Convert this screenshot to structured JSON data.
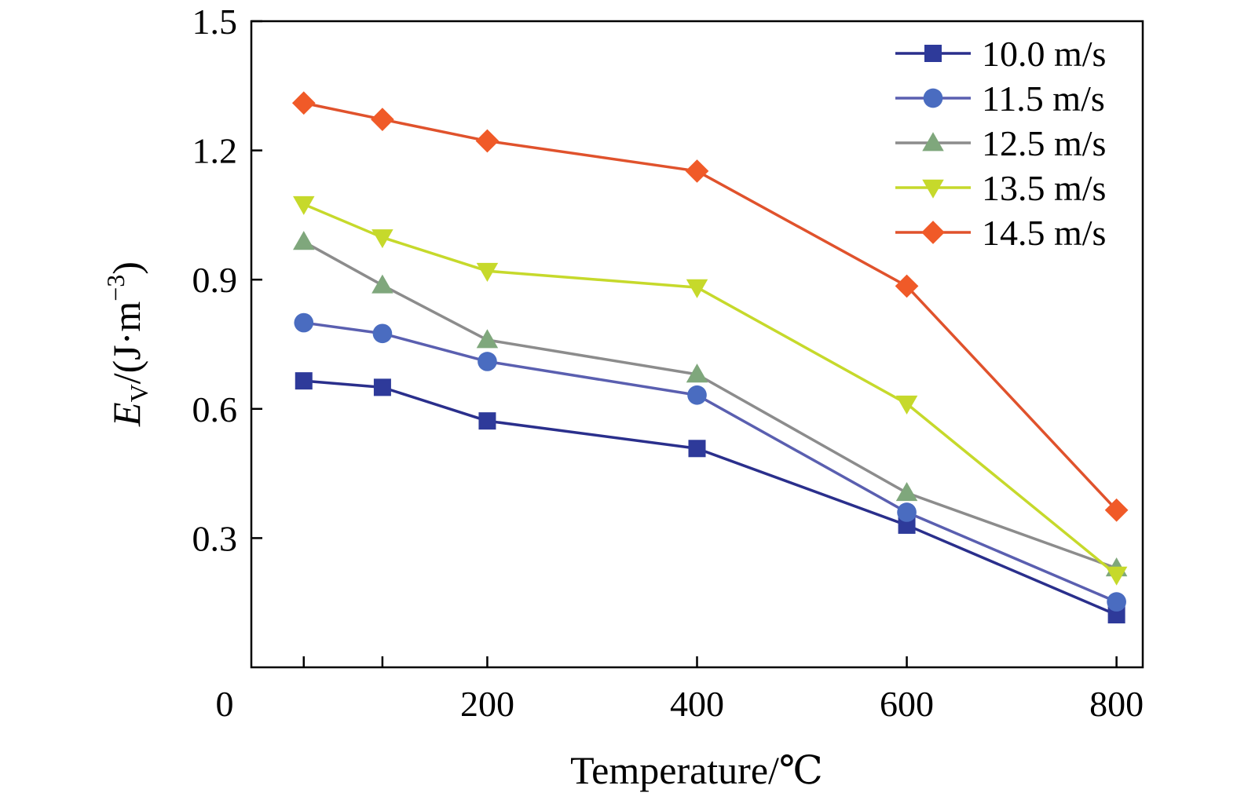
{
  "chart_data": {
    "type": "line",
    "xlabel": "Temperature/℃",
    "ylabel": {
      "symbol": "E",
      "subscript": "V",
      "unit_prefix": "/(J·m",
      "superscript": "−3",
      "unit_suffix": ")"
    },
    "xlim": [
      -25,
      825
    ],
    "ylim": [
      0.0,
      1.5
    ],
    "xticks": [
      {
        "value": 200,
        "label": "200"
      },
      {
        "value": 400,
        "label": "400"
      },
      {
        "value": 600,
        "label": "600"
      },
      {
        "value": 800,
        "label": "800"
      }
    ],
    "x_origin_label": "0",
    "yticks": [
      {
        "value": 0.3,
        "label": "0.3"
      },
      {
        "value": 0.6,
        "label": "0.6"
      },
      {
        "value": 0.9,
        "label": "0.9"
      },
      {
        "value": 1.2,
        "label": "1.2"
      },
      {
        "value": 1.5,
        "label": "1.5"
      }
    ],
    "x": [
      25,
      100,
      200,
      400,
      600,
      800
    ],
    "grid": false,
    "legend_position": "top-right",
    "series": [
      {
        "name": "10.0 m/s",
        "marker": "square",
        "color": "#2e3a9a",
        "values": [
          0.665,
          0.65,
          0.572,
          0.508,
          0.33,
          0.122
        ]
      },
      {
        "name": "11.5 m/s",
        "marker": "circle",
        "color": "#4a6cc0",
        "values": [
          0.8,
          0.775,
          0.71,
          0.632,
          0.36,
          0.152
        ]
      },
      {
        "name": "12.5 m/s",
        "marker": "triangle-up",
        "color": "#7fa77c",
        "values": [
          0.988,
          0.887,
          0.76,
          0.68,
          0.405,
          0.23
        ]
      },
      {
        "name": "13.5 m/s",
        "marker": "triangle-down",
        "color": "#c6d92b",
        "values": [
          1.075,
          0.998,
          0.92,
          0.882,
          0.612,
          0.215
        ]
      },
      {
        "name": "14.5 m/s",
        "marker": "diamond",
        "color": "#f05a28",
        "values": [
          1.31,
          1.272,
          1.222,
          1.152,
          0.885,
          0.365
        ]
      }
    ],
    "line_colors": {
      "10.0 m/s": "#2a2f8c",
      "11.5 m/s": "#5a5fb0",
      "12.5 m/s": "#8c8c8c",
      "13.5 m/s": "#c6d92b",
      "14.5 m/s": "#e0522c"
    }
  }
}
